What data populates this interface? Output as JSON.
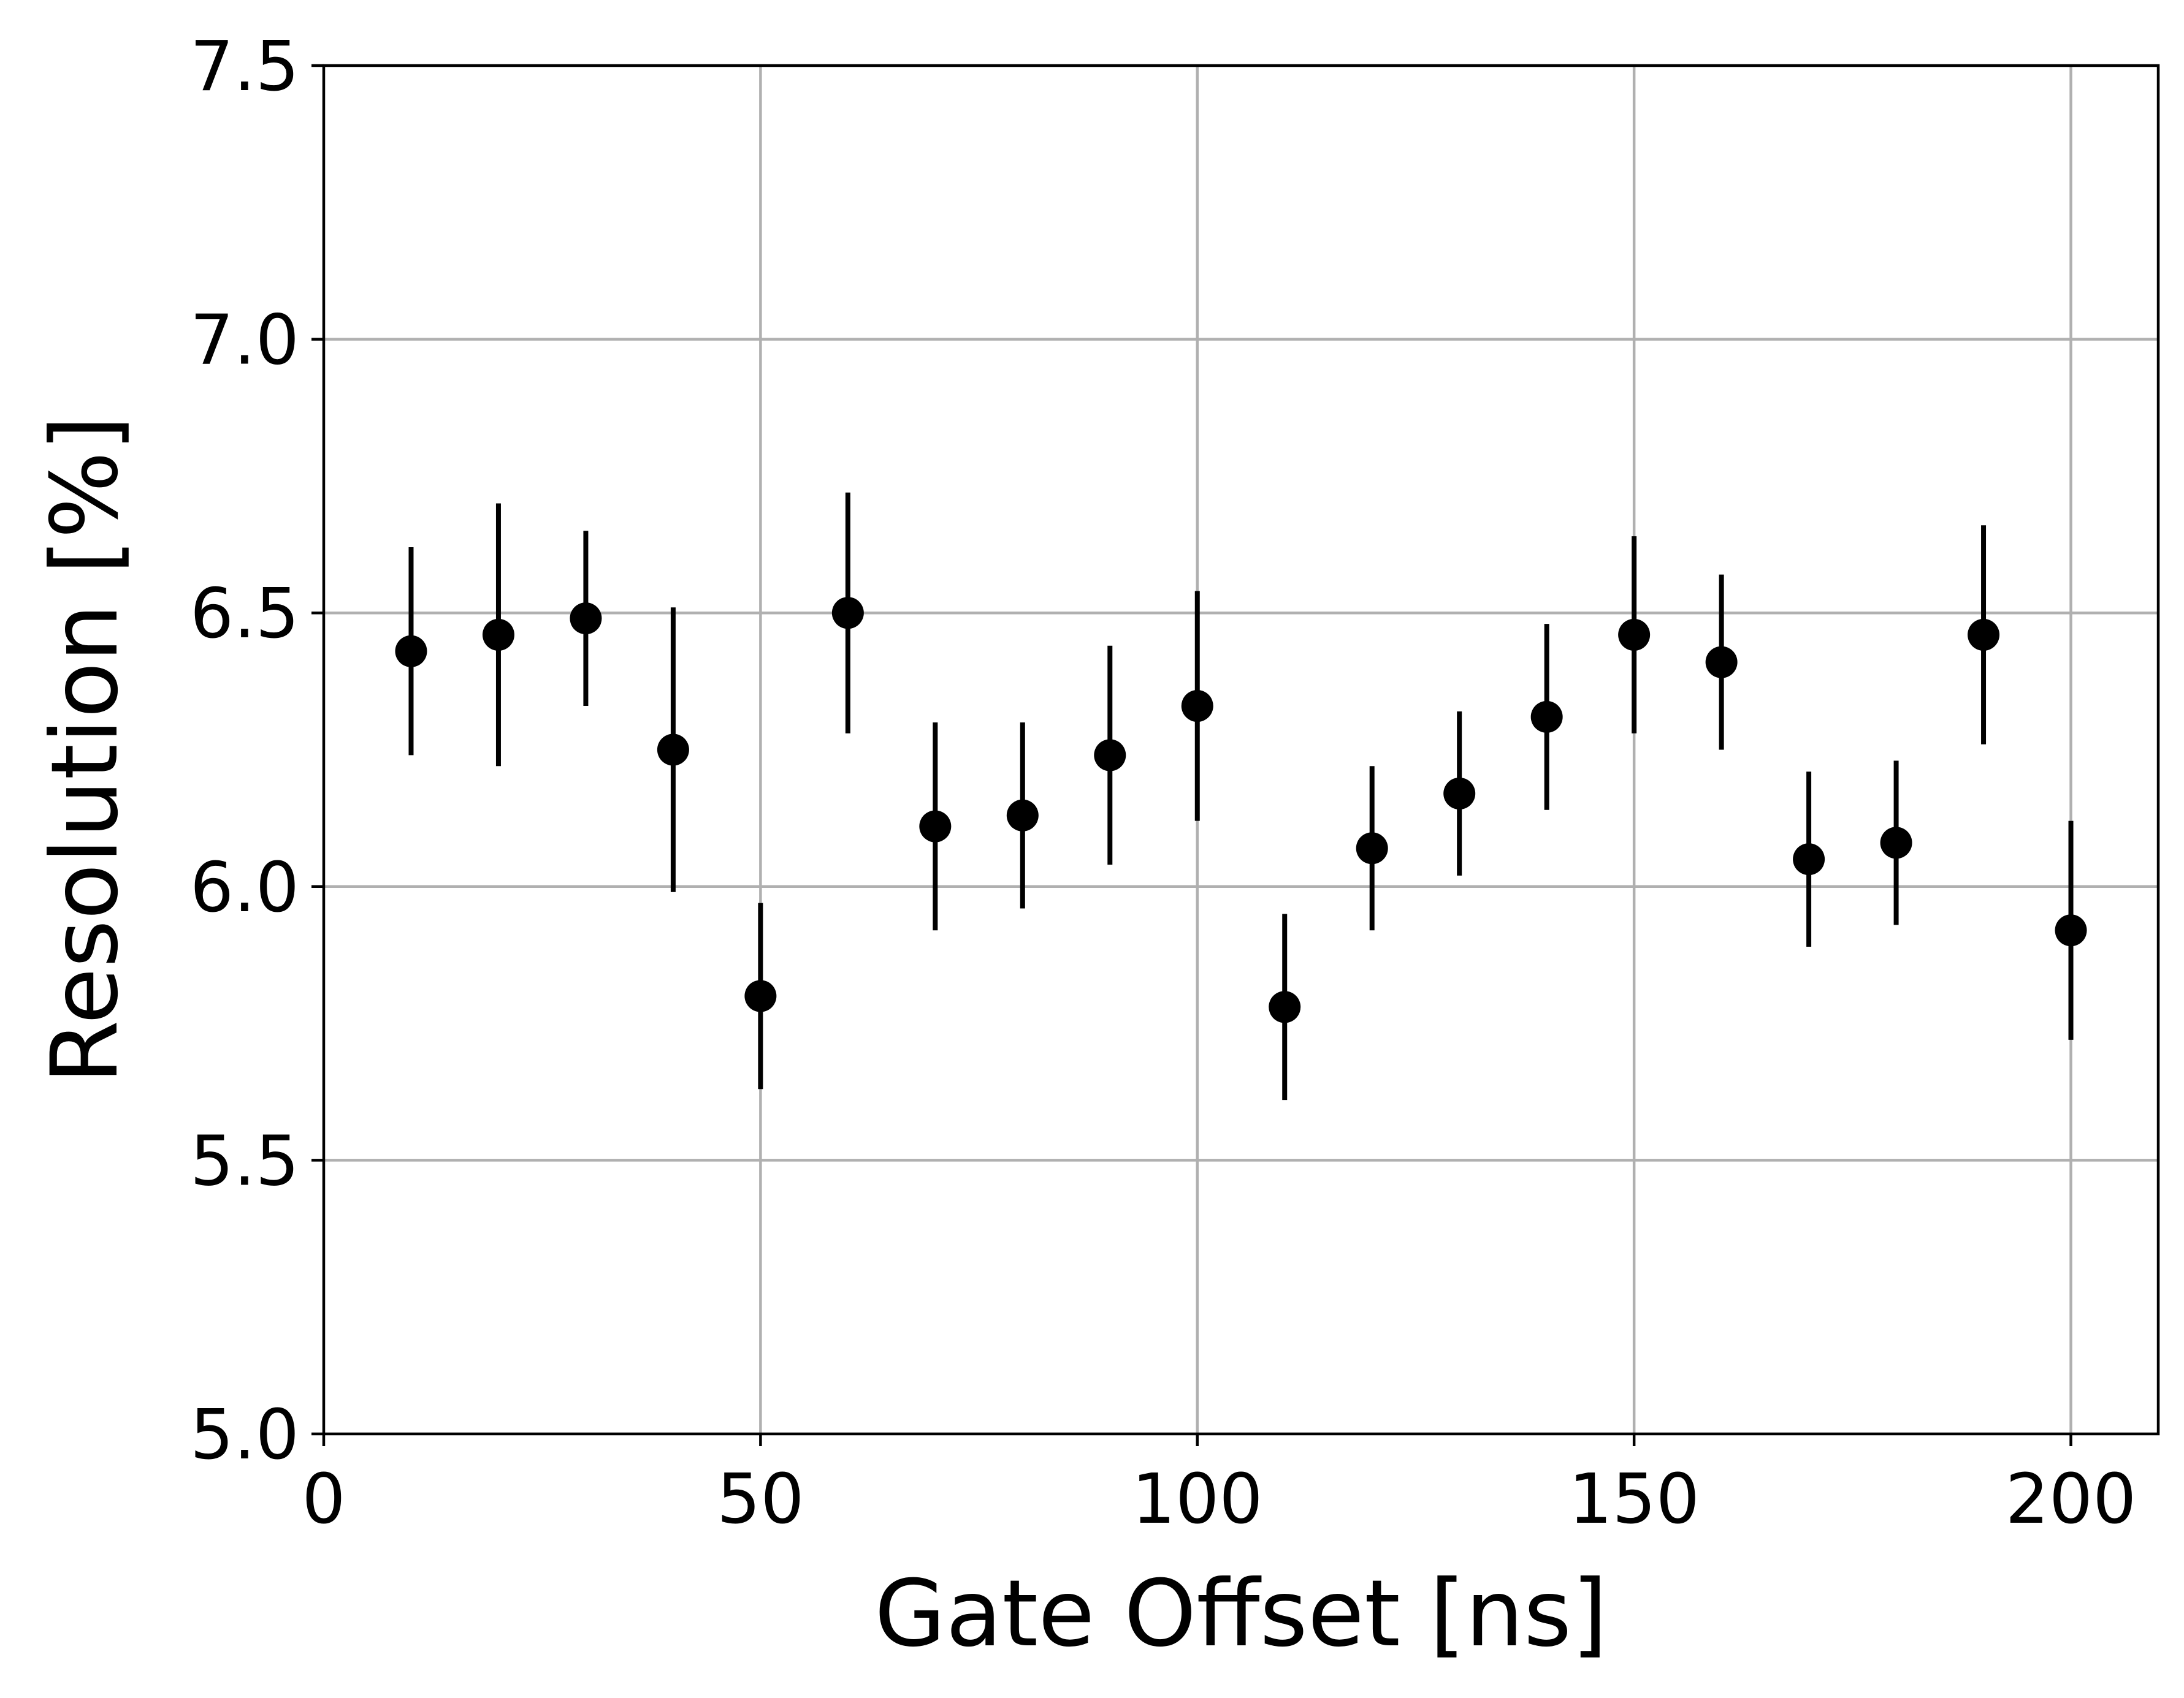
{
  "chart_data": {
    "type": "scatter",
    "title": "",
    "xlabel": "Gate Offset [ns]",
    "ylabel": "Resolution [%]",
    "xlim": [
      0,
      210
    ],
    "ylim": [
      5.0,
      7.5
    ],
    "grid": true,
    "x_ticks": [
      0,
      50,
      100,
      150,
      200
    ],
    "x_tick_labels": [
      "0",
      "50",
      "100",
      "150",
      "200"
    ],
    "y_ticks": [
      5.0,
      5.5,
      6.0,
      6.5,
      7.0,
      7.5
    ],
    "y_tick_labels": [
      "5.0",
      "5.5",
      "6.0",
      "6.5",
      "7.0",
      "7.5"
    ],
    "colors": {
      "marker": "#000000",
      "grid": "#b0b0b0"
    },
    "series": [
      {
        "x": [
          10,
          20,
          30,
          40,
          50,
          60,
          70,
          80,
          90,
          100,
          110,
          120,
          130,
          140,
          150,
          160,
          170,
          180,
          190,
          200
        ],
        "y": [
          6.43,
          6.46,
          6.49,
          6.25,
          5.8,
          6.5,
          6.11,
          6.13,
          6.24,
          6.33,
          5.78,
          6.07,
          6.17,
          6.31,
          6.46,
          6.41,
          6.05,
          6.08,
          6.46,
          5.92
        ],
        "yerr": [
          0.19,
          0.24,
          0.16,
          0.26,
          0.17,
          0.22,
          0.19,
          0.17,
          0.2,
          0.21,
          0.17,
          0.15,
          0.15,
          0.17,
          0.18,
          0.16,
          0.16,
          0.15,
          0.2,
          0.2
        ]
      }
    ]
  }
}
